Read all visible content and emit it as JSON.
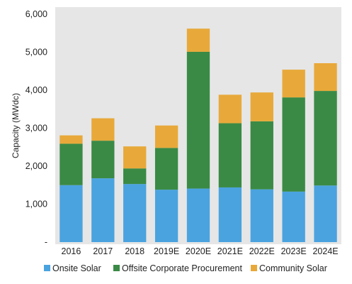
{
  "chart_data": {
    "type": "bar",
    "stacked": true,
    "categories": [
      "2016",
      "2017",
      "2018",
      "2019E",
      "2020E",
      "2021E",
      "2022E",
      "2023E",
      "2024E"
    ],
    "series": [
      {
        "name": "Onsite Solar",
        "color": "#4aa3df",
        "values": [
          1500,
          1680,
          1530,
          1380,
          1410,
          1440,
          1390,
          1330,
          1490
        ]
      },
      {
        "name": "Offsite Corporate Procurement",
        "color": "#3a8a45",
        "values": [
          1090,
          990,
          410,
          1100,
          3600,
          1690,
          1790,
          2480,
          2490
        ]
      },
      {
        "name": "Community Solar",
        "color": "#e8a93a",
        "values": [
          220,
          590,
          580,
          590,
          610,
          750,
          760,
          730,
          730
        ]
      }
    ],
    "ylabel": "Capacity (MWdc)",
    "ylim": [
      0,
      6000
    ],
    "yticks": [
      0,
      1000,
      2000,
      3000,
      4000,
      5000,
      6000
    ],
    "ytick_labels": [
      "-",
      "1,000",
      "2,000",
      "3,000",
      "4,000",
      "5,000",
      "6,000"
    ],
    "grid": false,
    "legend": "bottom"
  }
}
